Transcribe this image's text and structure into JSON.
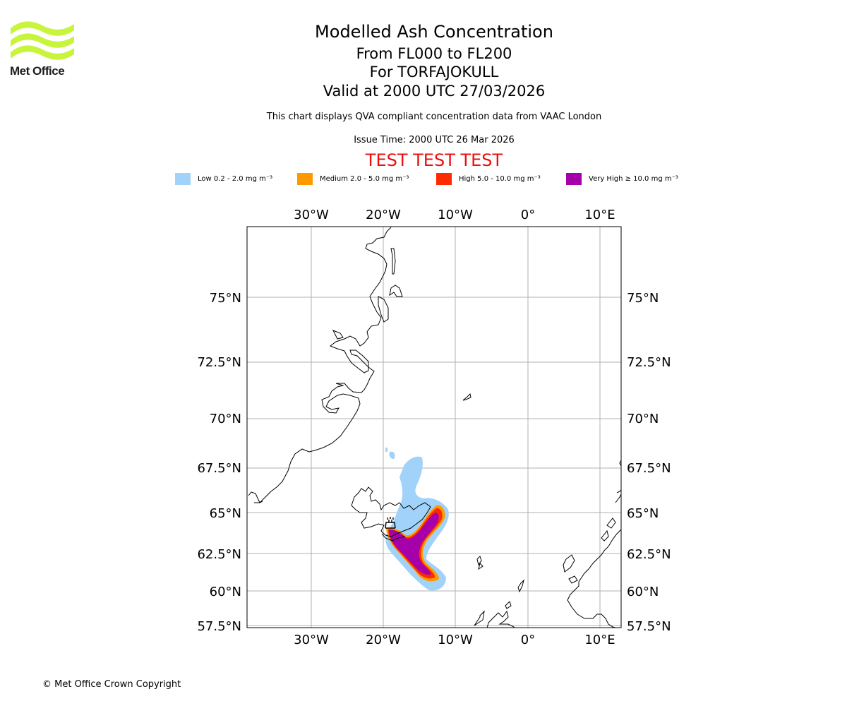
{
  "logo": {
    "name": "Met Office",
    "colors": {
      "waves": "#c8f53c",
      "text": "#1d1d1b"
    }
  },
  "title": {
    "line1": "Modelled Ash Concentration",
    "line2": "From FL000 to FL200",
    "line3": "For TORFAJOKULL",
    "line4": "Valid at 2000 UTC 27/03/2026"
  },
  "subtitle": "This chart displays QVA compliant concentration data from VAAC London",
  "issue_time": "Issue Time: 2000 UTC 26 Mar 2026",
  "test_banner": "TEST TEST TEST",
  "legend": [
    {
      "label": "Low 0.2 - 2.0 mg m⁻³",
      "color": "#a0d2fa"
    },
    {
      "label": "Medium 2.0 - 5.0 mg m⁻³",
      "color": "#ff9900"
    },
    {
      "label": "High 5.0 - 10.0 mg m⁻³",
      "color": "#ff2b00"
    },
    {
      "label": "Very High  ≥  10.0 mg m⁻³",
      "color": "#a500aa"
    }
  ],
  "map": {
    "lon_ticks": [
      "30°W",
      "20°W",
      "10°W",
      "0°",
      "10°E"
    ],
    "lat_ticks": [
      "75°N",
      "72.5°N",
      "70°N",
      "67.5°N",
      "65°N",
      "62.5°N",
      "60°N",
      "57.5°N"
    ],
    "volcano_marker": "volcano-symbol"
  },
  "copyright": "© Met Office Crown Copyright"
}
